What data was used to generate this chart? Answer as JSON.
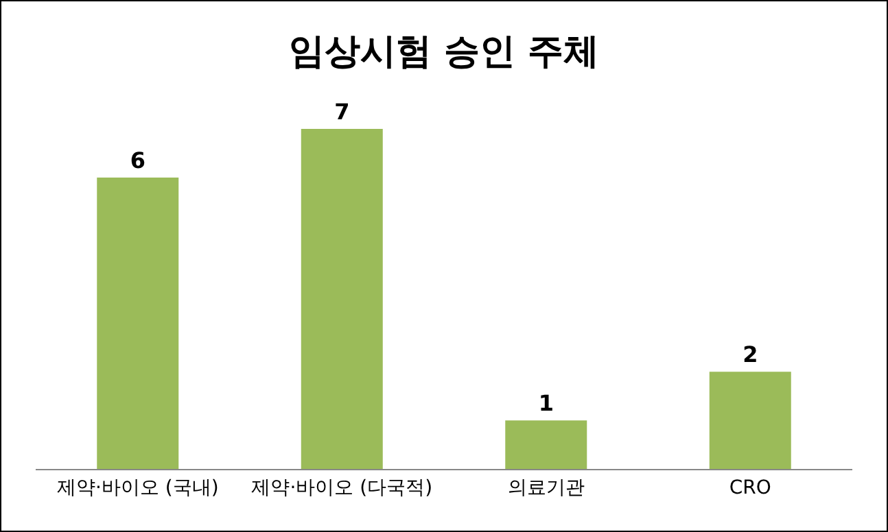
{
  "chart_data": {
    "type": "bar",
    "title": "임상시험 승인 주체",
    "categories": [
      "제약·바이오 (국내)",
      "제약·바이오 (다국적)",
      "의료기관",
      "CRO"
    ],
    "values": [
      6,
      7,
      1,
      2
    ],
    "color": "#9bbb59",
    "data_labels": true
  }
}
